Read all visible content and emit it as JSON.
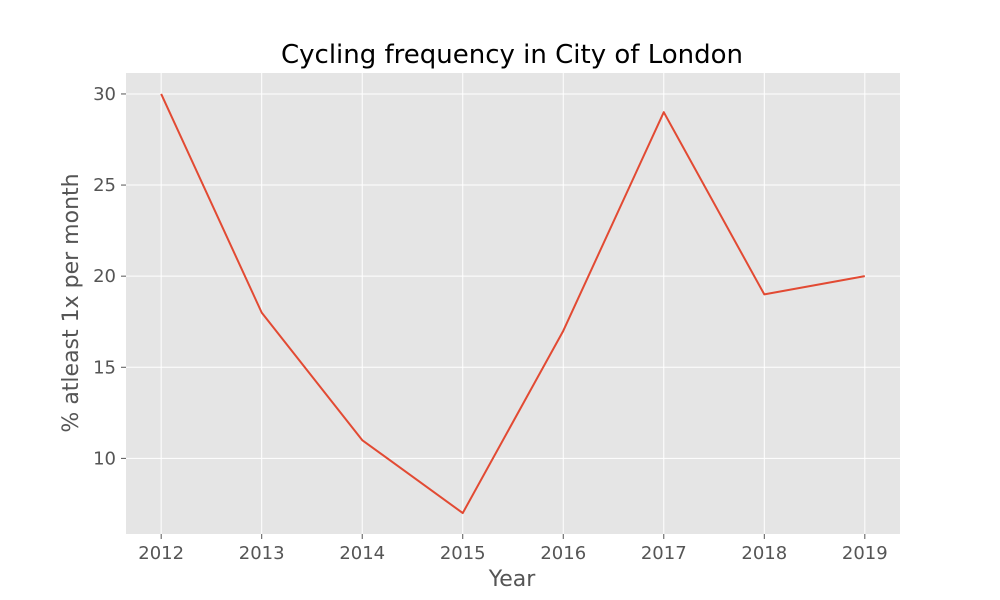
{
  "chart_data": {
    "type": "line",
    "title": "Cycling frequency in City of London",
    "xlabel": "Year",
    "ylabel": "% atleast 1x per month",
    "x": [
      2012,
      2013,
      2014,
      2015,
      2016,
      2017,
      2018,
      2019
    ],
    "series": [
      {
        "values": [
          30,
          18,
          11,
          7,
          17,
          29,
          19,
          20
        ]
      }
    ],
    "xticks": [
      "2012",
      "2013",
      "2014",
      "2015",
      "2016",
      "2017",
      "2018",
      "2019"
    ],
    "yticks": [
      "10",
      "15",
      "20",
      "25",
      "30"
    ],
    "xlim": [
      2011.65,
      2019.35
    ],
    "ylim": [
      5.85,
      31.15
    ],
    "grid": true,
    "colors": {
      "line": "#E24A33",
      "plot_background": "#E5E5E5",
      "grid": "#FFFFFF"
    }
  }
}
